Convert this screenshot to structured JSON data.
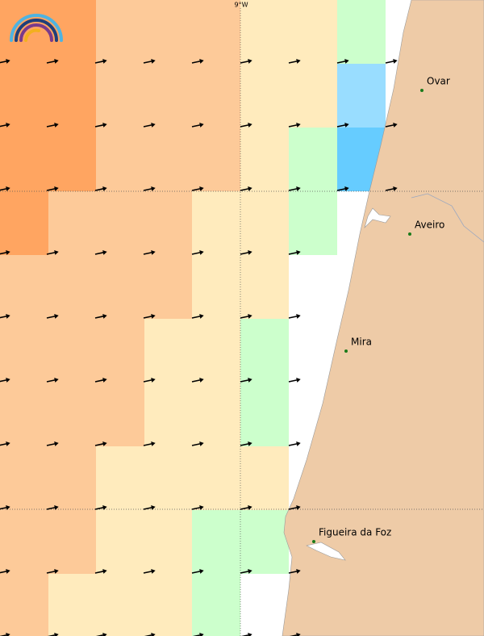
{
  "map": {
    "graticule_label": "9°W",
    "places": [
      {
        "name": "Ovar"
      },
      {
        "name": "Aveiro"
      },
      {
        "name": "Mira"
      },
      {
        "name": "Figueira da Foz"
      }
    ]
  }
}
